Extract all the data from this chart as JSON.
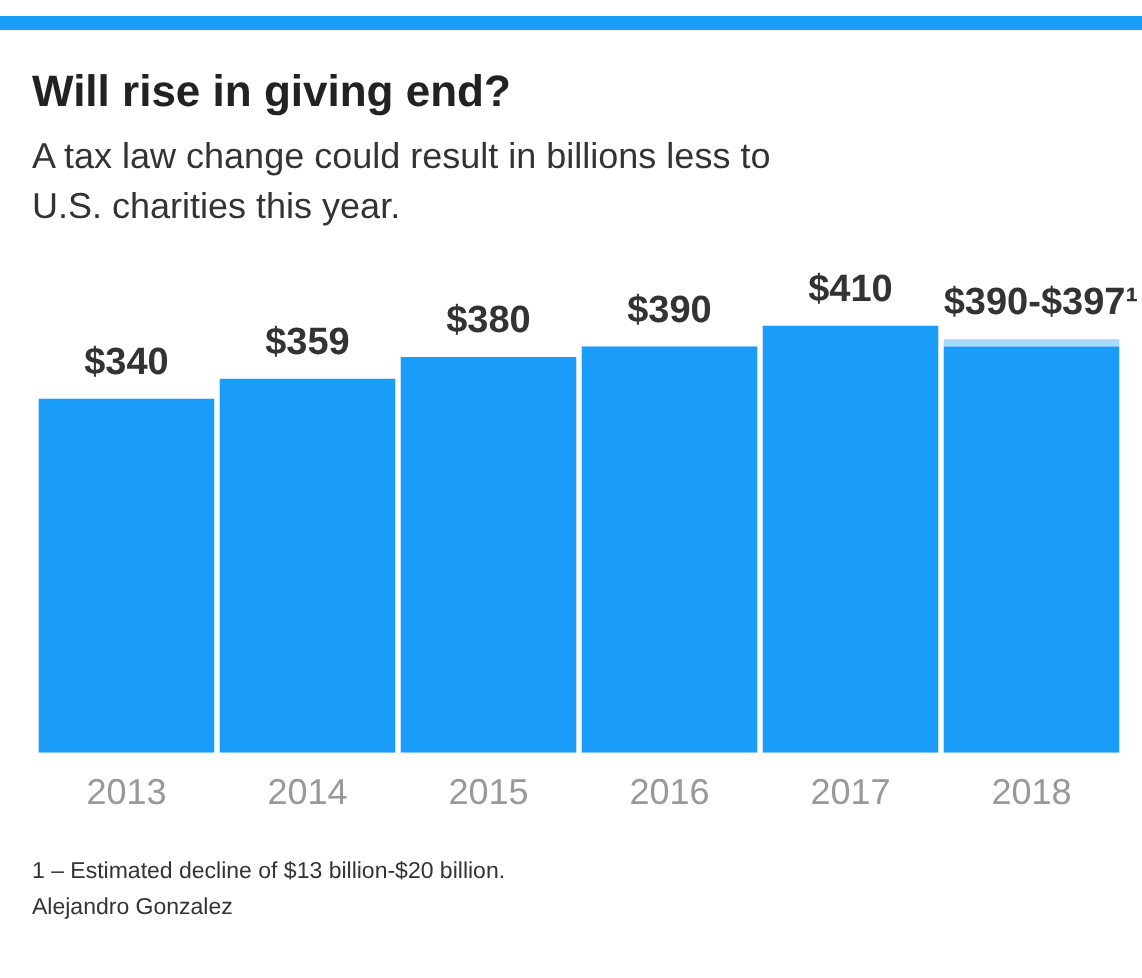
{
  "chart_data": {
    "type": "bar",
    "title": "Will rise in giving end?",
    "subtitle": "A tax law change could result in billions less to U.S. charities this year.",
    "categories": [
      "2013",
      "2014",
      "2015",
      "2016",
      "2017",
      "2018"
    ],
    "series": [
      {
        "color": "#1a9cf9",
        "values": [
          340,
          359,
          380,
          390,
          410,
          390
        ],
        "value_labels": [
          "$340",
          "$359",
          "$380",
          "$390",
          "$410",
          null
        ]
      },
      {
        "color": "#a9d9fb",
        "values": [
          null,
          null,
          null,
          null,
          null,
          7
        ],
        "value_labels": [
          null,
          null,
          null,
          null,
          null,
          "$390-$397¹"
        ]
      }
    ],
    "stacked": true,
    "grid": false,
    "legend": false,
    "tick_labels": "x",
    "annotations": [
      "1 – Estimated decline of $13 billion-$20 billion.",
      "Alejandro Gonzalez"
    ]
  }
}
